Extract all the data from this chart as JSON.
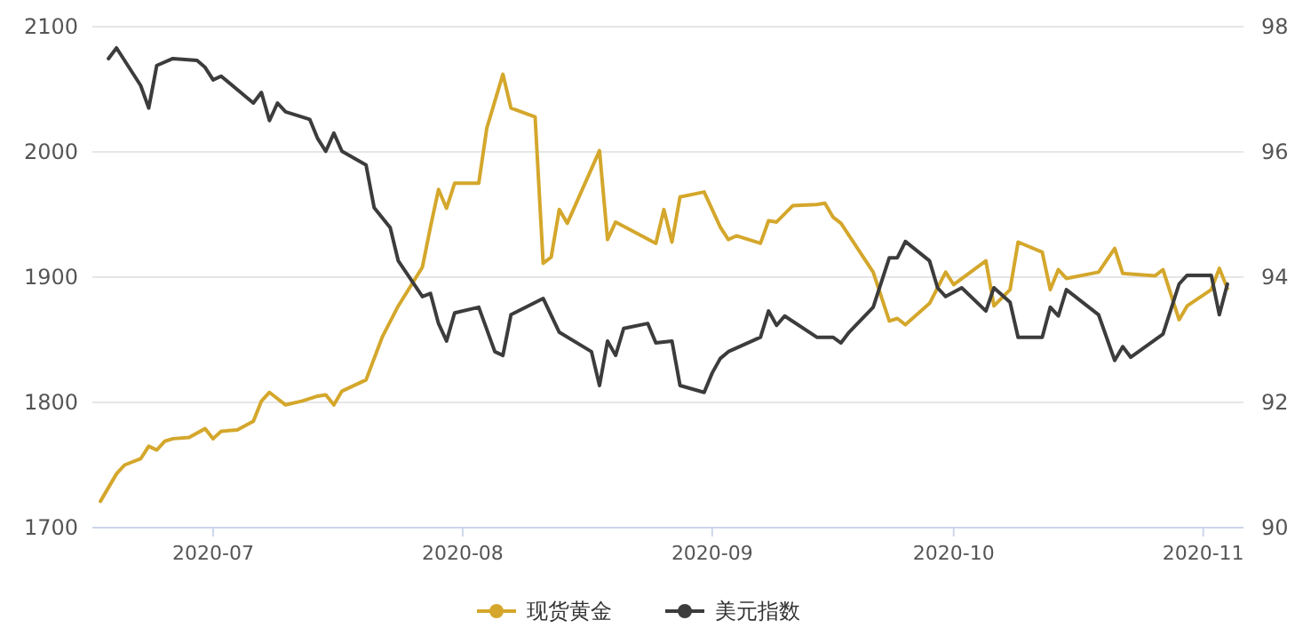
{
  "chart_data": {
    "type": "line",
    "xlim": [
      "2020-06-16",
      "2020-11-06"
    ],
    "xticks": [
      {
        "value": "2020-07-01",
        "label": "2020-07"
      },
      {
        "value": "2020-08-01",
        "label": "2020-08"
      },
      {
        "value": "2020-09-01",
        "label": "2020-09"
      },
      {
        "value": "2020-10-01",
        "label": "2020-10"
      },
      {
        "value": "2020-11-01",
        "label": "2020-11"
      }
    ],
    "ylim": [
      1700,
      2100
    ],
    "yticks": [
      1700,
      1800,
      1900,
      2000,
      2100
    ],
    "y2lim": [
      90,
      98
    ],
    "y2ticks": [
      90,
      92,
      94,
      96,
      98
    ],
    "grid": "y",
    "legend": "bottom",
    "series": [
      {
        "name": "现货黄金",
        "color": "#d4a72c",
        "x": [
          "2020-06-17",
          "2020-06-19",
          "2020-06-20",
          "2020-06-22",
          "2020-06-23",
          "2020-06-24",
          "2020-06-25",
          "2020-06-26",
          "2020-06-28",
          "2020-06-30",
          "2020-07-01",
          "2020-07-02",
          "2020-07-04",
          "2020-07-06",
          "2020-07-07",
          "2020-07-08",
          "2020-07-10",
          "2020-07-12",
          "2020-07-14",
          "2020-07-15",
          "2020-07-16",
          "2020-07-17",
          "2020-07-20",
          "2020-07-22",
          "2020-07-24",
          "2020-07-27",
          "2020-07-28",
          "2020-07-29",
          "2020-07-30",
          "2020-07-31",
          "2020-08-03",
          "2020-08-04",
          "2020-08-06",
          "2020-08-07",
          "2020-08-10",
          "2020-08-11",
          "2020-08-12",
          "2020-08-13",
          "2020-08-14",
          "2020-08-18",
          "2020-08-19",
          "2020-08-20",
          "2020-08-25",
          "2020-08-26",
          "2020-08-27",
          "2020-08-28",
          "2020-08-31",
          "2020-09-02",
          "2020-09-03",
          "2020-09-04",
          "2020-09-07",
          "2020-09-08",
          "2020-09-09",
          "2020-09-11",
          "2020-09-14",
          "2020-09-15",
          "2020-09-16",
          "2020-09-17",
          "2020-09-21",
          "2020-09-23",
          "2020-09-24",
          "2020-09-25",
          "2020-09-28",
          "2020-09-30",
          "2020-10-01",
          "2020-10-05",
          "2020-10-06",
          "2020-10-08",
          "2020-10-09",
          "2020-10-12",
          "2020-10-13",
          "2020-10-14",
          "2020-10-15",
          "2020-10-19",
          "2020-10-21",
          "2020-10-22",
          "2020-10-26",
          "2020-10-27",
          "2020-10-29",
          "2020-10-30",
          "2020-11-02",
          "2020-11-03",
          "2020-11-04"
        ],
        "values": [
          1721,
          1743,
          1750,
          1755,
          1765,
          1762,
          1769,
          1771,
          1772,
          1779,
          1771,
          1777,
          1778,
          1785,
          1801,
          1808,
          1798,
          1801,
          1805,
          1806,
          1798,
          1809,
          1818,
          1852,
          1877,
          1908,
          1940,
          1970,
          1955,
          1975,
          1975,
          2019,
          2062,
          2035,
          2028,
          1911,
          1916,
          1954,
          1943,
          2001,
          1930,
          1944,
          1927,
          1954,
          1928,
          1964,
          1968,
          1940,
          1930,
          1933,
          1927,
          1945,
          1944,
          1957,
          1958,
          1959,
          1948,
          1943,
          1904,
          1865,
          1867,
          1862,
          1879,
          1904,
          1894,
          1913,
          1877,
          1890,
          1928,
          1920,
          1890,
          1906,
          1899,
          1904,
          1923,
          1903,
          1901,
          1906,
          1866,
          1877,
          1890,
          1907,
          1891
        ]
      },
      {
        "name": "美元指数",
        "color": "#3c3c3c",
        "axis": "y2",
        "x": [
          "2020-06-18",
          "2020-06-19",
          "2020-06-22",
          "2020-06-23",
          "2020-06-24",
          "2020-06-26",
          "2020-06-29",
          "2020-06-30",
          "2020-07-01",
          "2020-07-02",
          "2020-07-06",
          "2020-07-07",
          "2020-07-08",
          "2020-07-09",
          "2020-07-10",
          "2020-07-13",
          "2020-07-14",
          "2020-07-15",
          "2020-07-16",
          "2020-07-17",
          "2020-07-20",
          "2020-07-21",
          "2020-07-23",
          "2020-07-24",
          "2020-07-27",
          "2020-07-28",
          "2020-07-29",
          "2020-07-30",
          "2020-07-31",
          "2020-08-03",
          "2020-08-05",
          "2020-08-06",
          "2020-08-07",
          "2020-08-11",
          "2020-08-13",
          "2020-08-17",
          "2020-08-18",
          "2020-08-19",
          "2020-08-20",
          "2020-08-21",
          "2020-08-24",
          "2020-08-25",
          "2020-08-27",
          "2020-08-28",
          "2020-08-31",
          "2020-09-01",
          "2020-09-02",
          "2020-09-03",
          "2020-09-07",
          "2020-09-08",
          "2020-09-09",
          "2020-09-10",
          "2020-09-14",
          "2020-09-16",
          "2020-09-17",
          "2020-09-18",
          "2020-09-21",
          "2020-09-23",
          "2020-09-24",
          "2020-09-25",
          "2020-09-28",
          "2020-09-29",
          "2020-09-30",
          "2020-10-02",
          "2020-10-05",
          "2020-10-06",
          "2020-10-08",
          "2020-10-09",
          "2020-10-12",
          "2020-10-13",
          "2020-10-14",
          "2020-10-15",
          "2020-10-19",
          "2020-10-21",
          "2020-10-22",
          "2020-10-23",
          "2020-10-27",
          "2020-10-29",
          "2020-10-30",
          "2020-11-02",
          "2020-11-03",
          "2020-11-04"
        ],
        "values": [
          97.49,
          97.66,
          97.06,
          96.7,
          97.38,
          97.49,
          97.46,
          97.35,
          97.15,
          97.21,
          96.78,
          96.95,
          96.5,
          96.78,
          96.64,
          96.52,
          96.21,
          96.01,
          96.3,
          96.01,
          95.79,
          95.11,
          94.79,
          94.26,
          93.69,
          93.74,
          93.26,
          92.98,
          93.43,
          93.52,
          92.81,
          92.75,
          93.4,
          93.66,
          93.12,
          92.81,
          92.27,
          92.98,
          92.75,
          93.18,
          93.26,
          92.95,
          92.98,
          92.27,
          92.16,
          92.47,
          92.7,
          92.81,
          93.04,
          93.46,
          93.23,
          93.38,
          93.04,
          93.04,
          92.95,
          93.12,
          93.52,
          94.31,
          94.31,
          94.57,
          94.26,
          93.83,
          93.69,
          93.83,
          93.46,
          93.83,
          93.6,
          93.04,
          93.04,
          93.52,
          93.38,
          93.8,
          93.4,
          92.67,
          92.89,
          92.72,
          93.09,
          93.89,
          94.03,
          94.03,
          93.4,
          93.89
        ]
      }
    ]
  }
}
